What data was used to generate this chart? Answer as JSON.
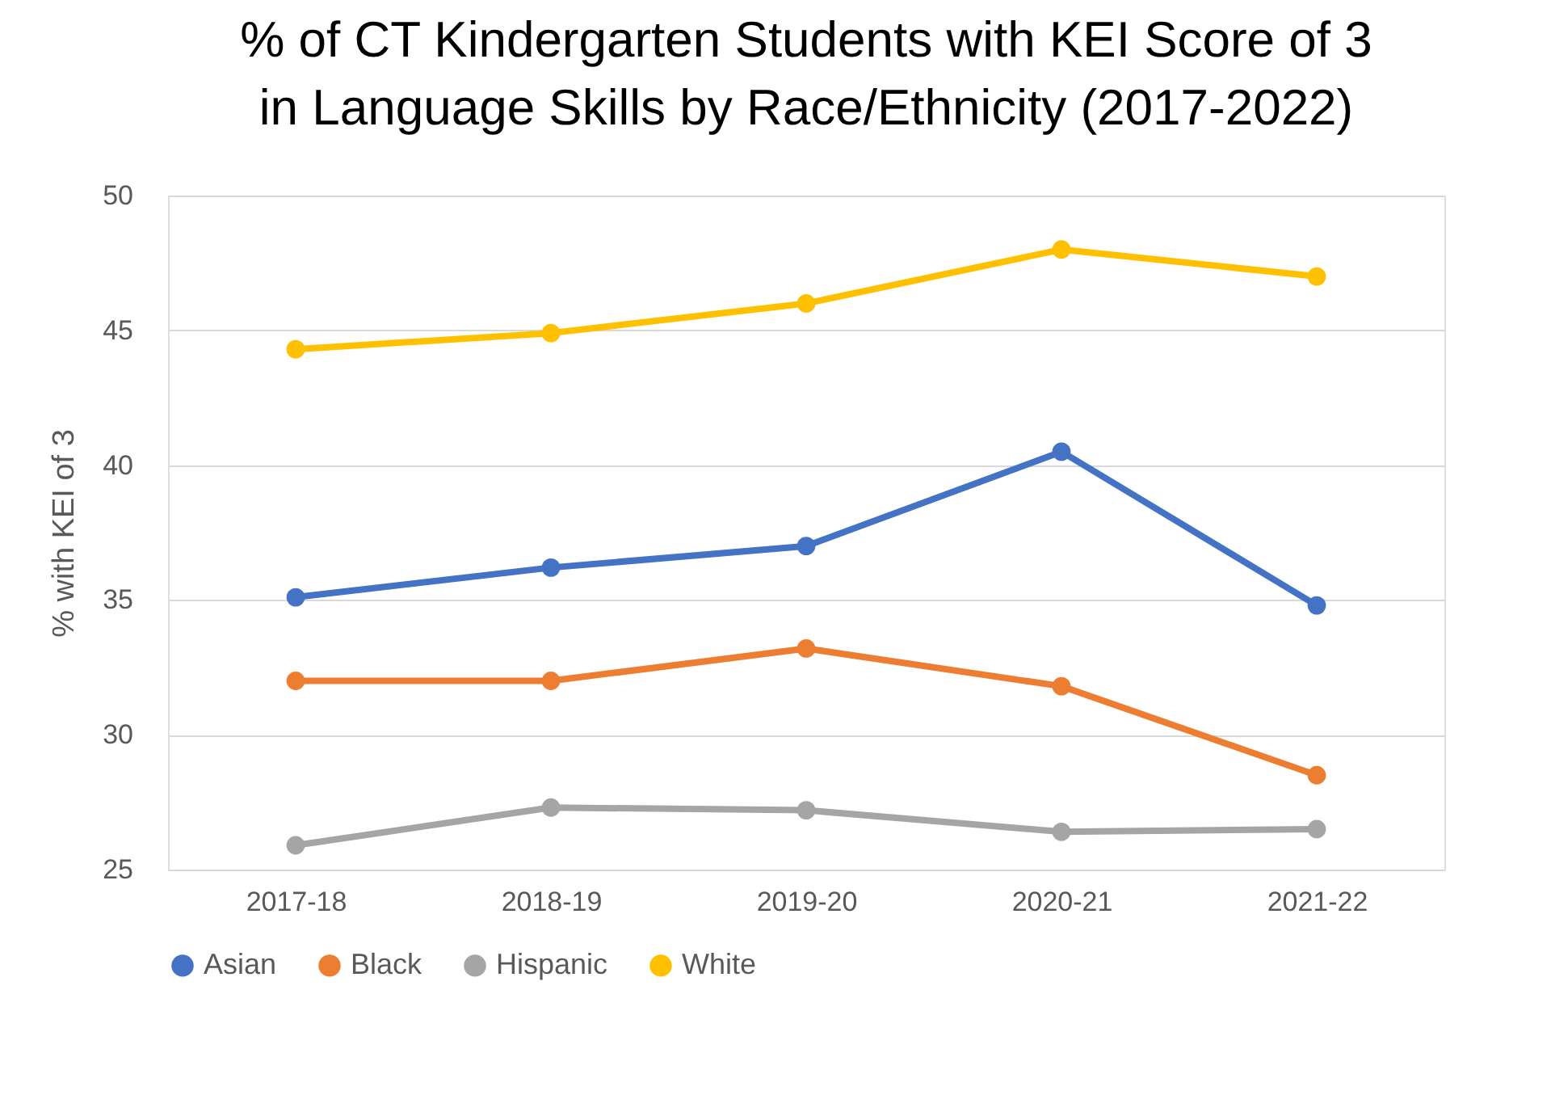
{
  "chart_data": {
    "type": "line",
    "title": "% of CT Kindergarten Students with KEI Score of 3\nin Language Skills by Race/Ethnicity (2017-2022)",
    "ylabel": "% with KEI of 3",
    "categories": [
      "2017-18",
      "2018-19",
      "2019-20",
      "2020-21",
      "2021-22"
    ],
    "series": [
      {
        "name": "Asian",
        "color": "#4472c4",
        "values": [
          35.1,
          36.2,
          37.0,
          40.5,
          34.8
        ]
      },
      {
        "name": "Black",
        "color": "#ed7d31",
        "values": [
          32.0,
          32.0,
          33.2,
          31.8,
          28.5
        ]
      },
      {
        "name": "Hispanic",
        "color": "#a5a5a5",
        "values": [
          25.9,
          27.3,
          27.2,
          26.4,
          26.5
        ]
      },
      {
        "name": "White",
        "color": "#ffc000",
        "values": [
          44.3,
          44.9,
          46.0,
          48.0,
          47.0
        ]
      }
    ],
    "ylim": [
      25,
      50
    ],
    "yticks": [
      25,
      30,
      35,
      40,
      45,
      50
    ],
    "grid": "y",
    "legend": "bottom",
    "marker": "circle",
    "line_style": "solid"
  }
}
